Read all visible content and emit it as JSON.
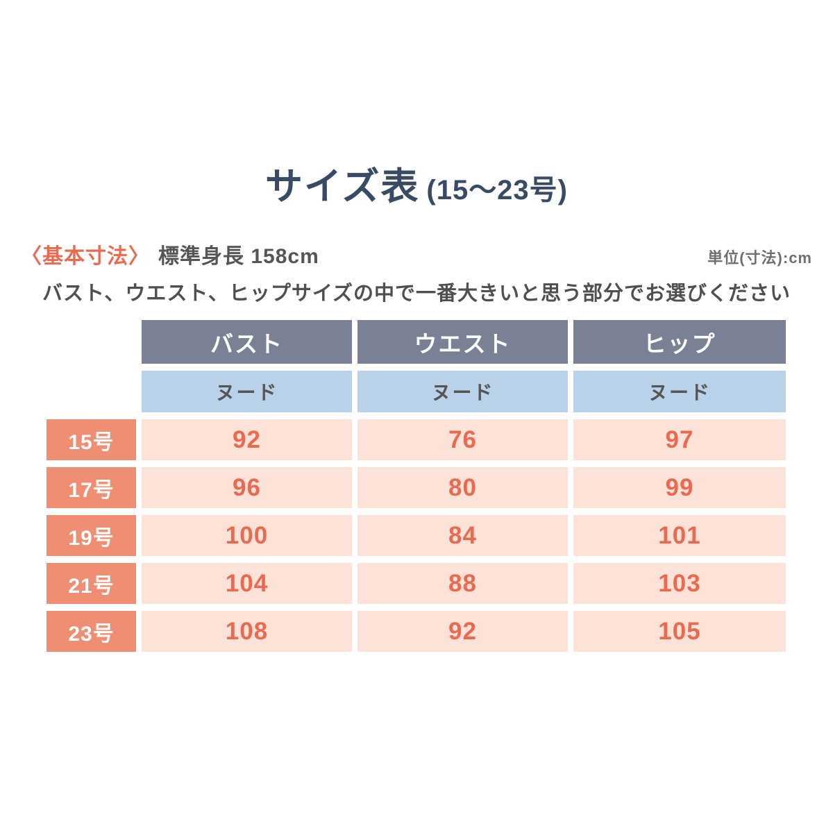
{
  "header": {
    "title": "サイズ表",
    "range": "(15〜23号)"
  },
  "info": {
    "basic_label": "〈基本寸法〉",
    "height_label": "標準身長 158cm",
    "unit_label": "単位(寸法):cm",
    "instruction": "バスト、ウエスト、ヒップサイズの中で一番大きいと思う部分でお選びください"
  },
  "table": {
    "columns": [
      "バスト",
      "ウエスト",
      "ヒップ"
    ],
    "sub_headers": [
      "ヌード",
      "ヌード",
      "ヌード"
    ],
    "rows": [
      {
        "label": "15号",
        "values": [
          "92",
          "76",
          "97"
        ]
      },
      {
        "label": "17号",
        "values": [
          "96",
          "80",
          "99"
        ]
      },
      {
        "label": "19号",
        "values": [
          "100",
          "84",
          "101"
        ]
      },
      {
        "label": "21号",
        "values": [
          "104",
          "88",
          "103"
        ]
      },
      {
        "label": "23号",
        "values": [
          "108",
          "92",
          "105"
        ]
      }
    ]
  },
  "colors": {
    "title_navy": "#394a64",
    "accent_coral": "#e96a50",
    "row_label_salmon": "#f08e73",
    "cell_pink": "#fde2d8",
    "header_slate": "#7a8195",
    "sub_header_blue": "#bad2e9",
    "text_gray": "#555555"
  },
  "chart_data": {
    "type": "table",
    "title": "サイズ表 (15〜23号)",
    "unit": "cm",
    "standard_height_cm": 158,
    "measurement_type": "ヌード",
    "columns": [
      "バスト",
      "ウエスト",
      "ヒップ"
    ],
    "categories": [
      "15号",
      "17号",
      "19号",
      "21号",
      "23号"
    ],
    "series": [
      {
        "name": "バスト(ヌード)",
        "values": [
          92,
          96,
          100,
          104,
          108
        ]
      },
      {
        "name": "ウエスト(ヌード)",
        "values": [
          76,
          80,
          84,
          88,
          92
        ]
      },
      {
        "name": "ヒップ(ヌード)",
        "values": [
          97,
          99,
          101,
          103,
          105
        ]
      }
    ]
  }
}
